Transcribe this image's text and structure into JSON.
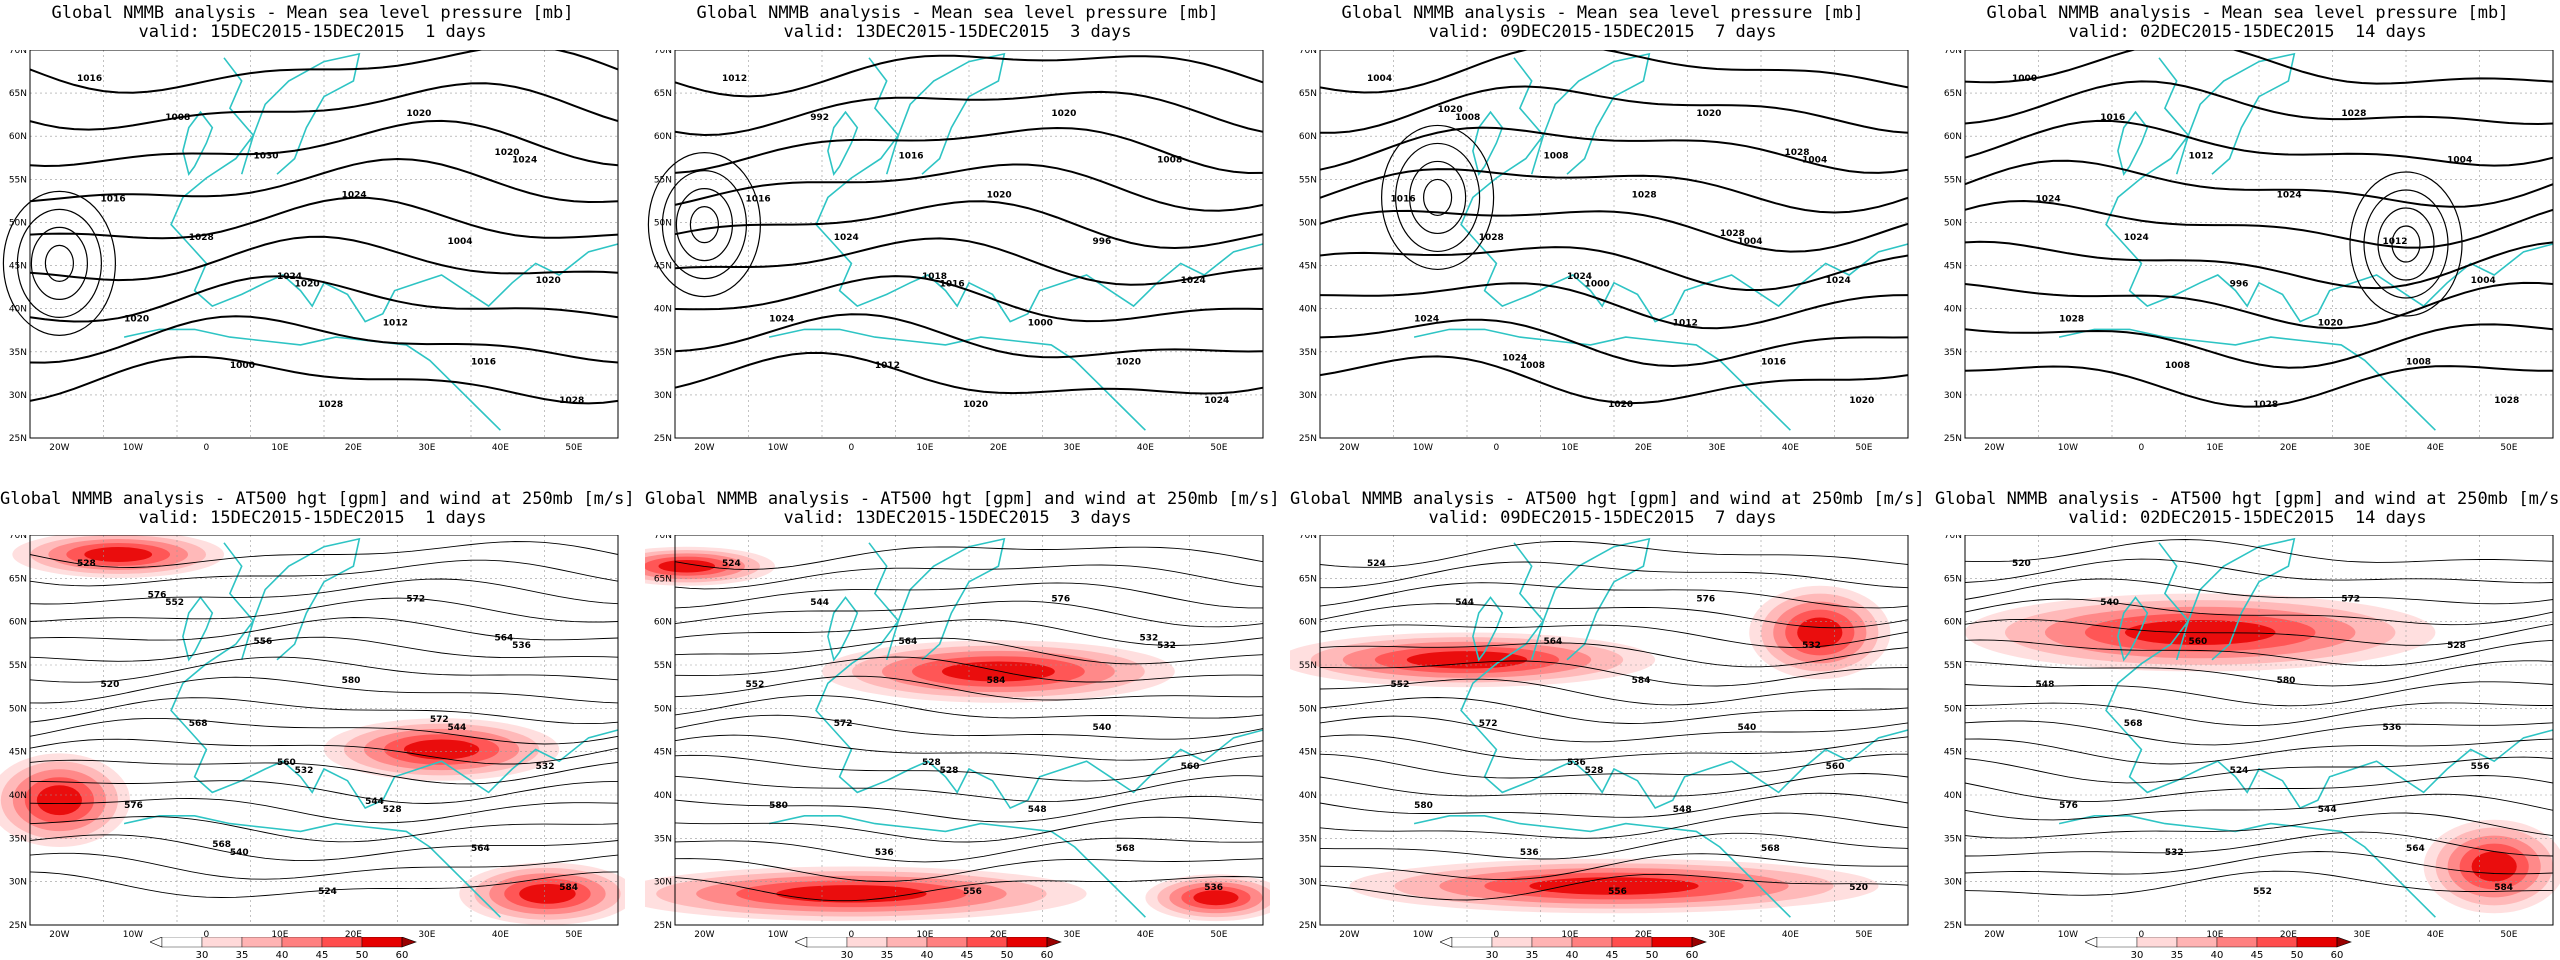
{
  "panels_top": [
    {
      "title1": "Global NMMB analysis - Mean sea level pressure [mb]",
      "title2": "valid: 15DEC2015-15DEC2015  1 days",
      "labels": [
        "1016",
        "1020",
        "1024",
        "1000",
        "1004",
        "1008",
        "1012",
        "1016",
        "1028",
        "1020",
        "1030",
        "1016",
        "1028",
        "1020",
        "1020",
        "1024",
        "1028",
        "1024",
        "1020"
      ]
    },
    {
      "title1": "Global NMMB analysis - Mean sea level pressure [mb]",
      "title2": "valid: 13DEC2015-15DEC2015  3 days",
      "labels": [
        "1012",
        "1016",
        "1008",
        "1012",
        "996",
        "992",
        "1000",
        "1016",
        "1020",
        "1024",
        "1016",
        "1020",
        "1024",
        "1020",
        "1024",
        "1020",
        "1024",
        "1018"
      ]
    },
    {
      "title1": "Global NMMB analysis - Mean sea level pressure [mb]",
      "title2": "valid: 09DEC2015-15DEC2015  7 days",
      "labels": [
        "1004",
        "1000",
        "1004",
        "1008",
        "1004",
        "1008",
        "1012",
        "1016",
        "1020",
        "1024",
        "1008",
        "1016",
        "1028",
        "1020",
        "1024",
        "1028",
        "1020",
        "1024",
        "1028",
        "1024",
        "1028",
        "1020"
      ]
    },
    {
      "title1": "Global NMMB analysis - Mean sea level pressure [mb]",
      "title2": "valid: 02DEC2015-15DEC2015  14 days",
      "labels": [
        "1000",
        "996",
        "1004",
        "1008",
        "1012",
        "1016",
        "1020",
        "1024",
        "1028",
        "1004",
        "1012",
        "1008",
        "1024",
        "1028",
        "1028",
        "1024",
        "1028"
      ]
    }
  ],
  "panels_bottom": [
    {
      "title1": "Global NMMB analysis - AT500 hgt [gpm] and wind at 250mb [m/s]",
      "title2": "valid: 15DEC2015-15DEC2015  1 days",
      "labels": [
        "528",
        "532",
        "536",
        "540",
        "544",
        "552",
        "528",
        "520",
        "524",
        "532",
        "556",
        "564",
        "568",
        "572",
        "576",
        "580",
        "584",
        "560",
        "564",
        "568",
        "572",
        "576",
        "544"
      ]
    },
    {
      "title1": "Global NMMB analysis - AT500 hgt [gpm] and wind at 250mb [m/s]",
      "title2": "valid: 13DEC2015-15DEC2015  3 days",
      "labels": [
        "524",
        "528",
        "532",
        "536",
        "540",
        "544",
        "548",
        "552",
        "556",
        "560",
        "564",
        "568",
        "572",
        "576",
        "580",
        "584",
        "536",
        "528",
        "532"
      ]
    },
    {
      "title1": "Global NMMB analysis - AT500 hgt [gpm] and wind at 250mb [m/s]",
      "title2": "valid: 09DEC2015-15DEC2015  7 days",
      "labels": [
        "524",
        "528",
        "532",
        "536",
        "540",
        "544",
        "548",
        "552",
        "556",
        "560",
        "564",
        "568",
        "572",
        "576",
        "580",
        "584",
        "520",
        "536"
      ]
    },
    {
      "title1": "Global NMMB analysis - AT500 hgt [gpm] and wind at 250mb [m/s]",
      "title2": "valid: 02DEC2015-15DEC2015  14 days",
      "labels": [
        "520",
        "524",
        "528",
        "532",
        "536",
        "540",
        "544",
        "548",
        "552",
        "556",
        "560",
        "564",
        "568",
        "572",
        "576",
        "580",
        "584"
      ]
    }
  ],
  "axes": {
    "lat_labels": [
      "70N",
      "65N",
      "60N",
      "55N",
      "50N",
      "45N",
      "40N",
      "35N",
      "30N",
      "25N"
    ],
    "lon_labels": [
      "20W",
      "10W",
      "0",
      "10E",
      "20E",
      "30E",
      "40E",
      "50E"
    ]
  },
  "colorbar": {
    "labels": [
      "30",
      "35",
      "40",
      "45",
      "50",
      "60"
    ],
    "colors": [
      "#ffffff",
      "#ffd9d9",
      "#ffb3b3",
      "#ff8080",
      "#ff4d4d",
      "#e60000",
      "#990000"
    ]
  },
  "colors": {
    "coast": "#2ec4c4",
    "contour": "#000000",
    "grid": "#999999"
  }
}
